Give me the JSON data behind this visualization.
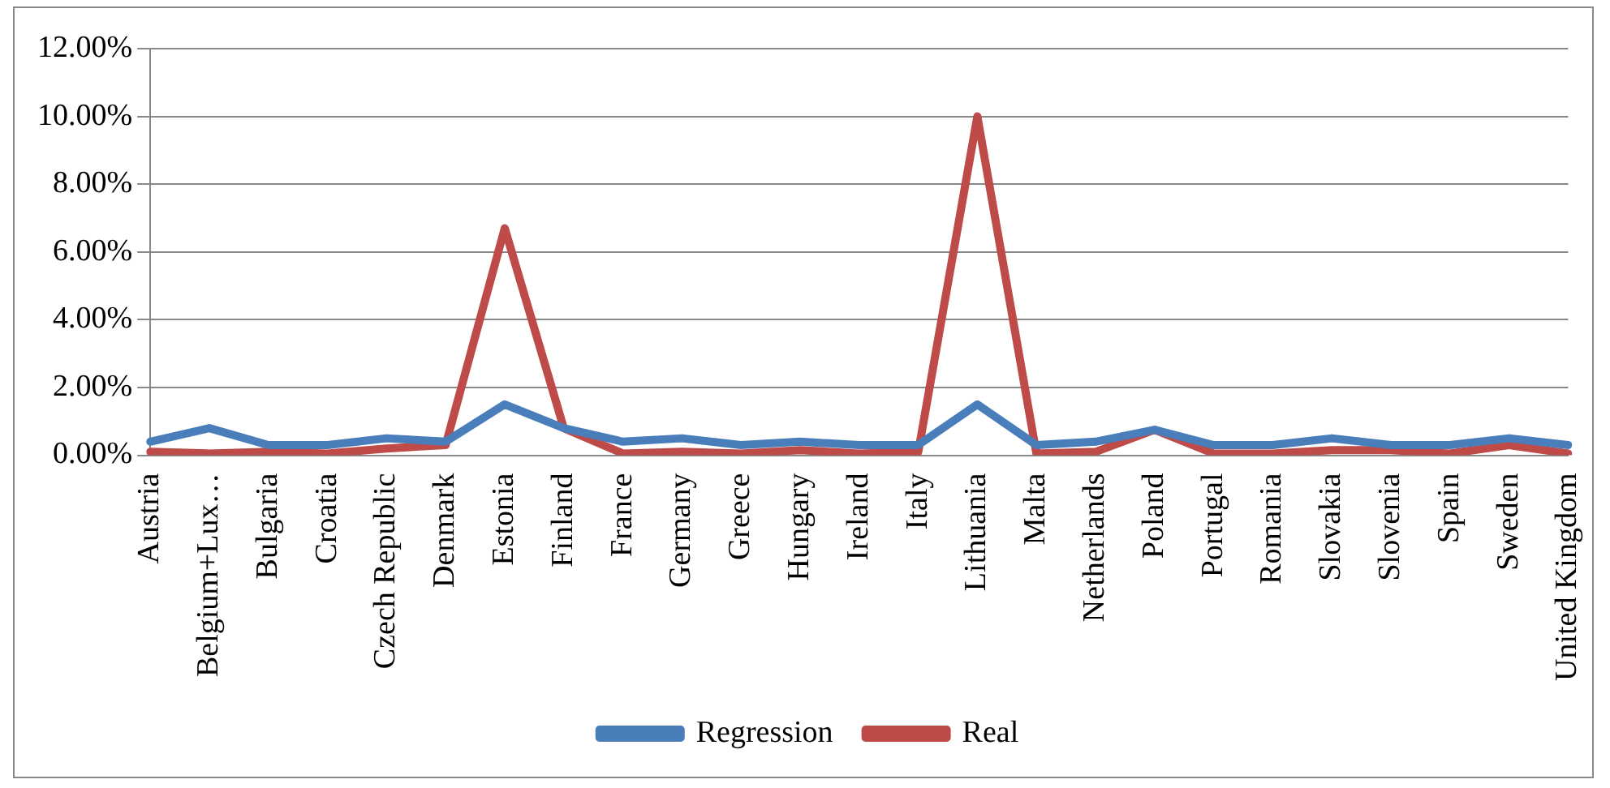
{
  "chart_data": {
    "type": "line",
    "categories": [
      "Austria",
      "Belgium+Lux…",
      "Bulgaria",
      "Croatia",
      "Czech Republic",
      "Denmark",
      "Estonia",
      "Finland",
      "France",
      "Germany",
      "Greece",
      "Hungary",
      "Ireland",
      "Italy",
      "Lithuania",
      "Malta",
      "Netherlands",
      "Poland",
      "Portugal",
      "Romania",
      "Slovakia",
      "Slovenia",
      "Spain",
      "Sweden",
      "United Kingdom"
    ],
    "series": [
      {
        "name": "Regression",
        "color": "#4a7ebb",
        "values": [
          0.4,
          0.8,
          0.3,
          0.3,
          0.5,
          0.4,
          1.5,
          0.8,
          0.4,
          0.5,
          0.3,
          0.4,
          0.3,
          0.3,
          1.5,
          0.3,
          0.4,
          0.75,
          0.3,
          0.3,
          0.5,
          0.3,
          0.3,
          0.5,
          0.3
        ]
      },
      {
        "name": "Real",
        "color": "#be4b48",
        "values": [
          0.1,
          0.05,
          0.1,
          0.05,
          0.2,
          0.3,
          6.7,
          0.8,
          0.05,
          0.1,
          0.05,
          0.15,
          0.05,
          0.1,
          10,
          0.05,
          0.1,
          0.75,
          0.05,
          0.05,
          0.15,
          0.15,
          0.05,
          0.3,
          0.05
        ]
      }
    ],
    "ylim": [
      0,
      12
    ],
    "yticks": [
      {
        "value": 0,
        "label": "0.00%"
      },
      {
        "value": 2,
        "label": "2.00%"
      },
      {
        "value": 4,
        "label": "4.00%"
      },
      {
        "value": 6,
        "label": "6.00%"
      },
      {
        "value": 8,
        "label": "8.00%"
      },
      {
        "value": 10,
        "label": "10.00%"
      },
      {
        "value": 12,
        "label": "12.00%"
      }
    ],
    "grid": "y",
    "legend": "bottom",
    "marker": "none",
    "line_style": "solid"
  }
}
